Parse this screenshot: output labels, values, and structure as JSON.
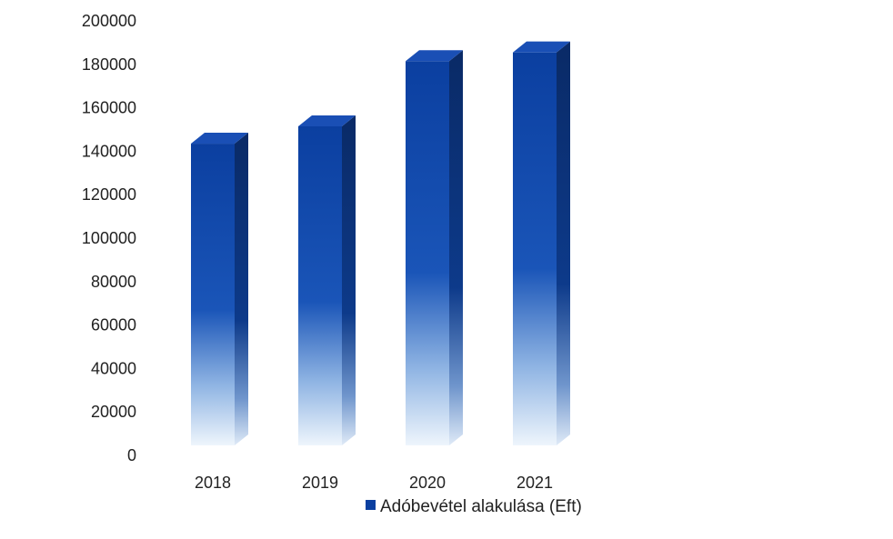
{
  "chart_data": {
    "type": "bar",
    "categories": [
      "2018",
      "2019",
      "2020",
      "2021"
    ],
    "series": [
      {
        "name": "Adóbevétel alakulása (Eft)",
        "values": [
          146000,
          154000,
          184000,
          188000
        ]
      }
    ],
    "ylim": [
      0,
      200000
    ],
    "yticks": [
      0,
      20000,
      40000,
      60000,
      80000,
      100000,
      120000,
      140000,
      160000,
      180000,
      200000
    ],
    "grid": false,
    "legend_position": "bottom",
    "style": "3d-column",
    "colors": {
      "bar_front_top": "#0b3fa0",
      "bar_front_bottom": "#e8f1fb",
      "bar_side": "#0a2f73",
      "bar_top": "#1a4fb5",
      "legend_marker": "#0b3fa0"
    }
  }
}
